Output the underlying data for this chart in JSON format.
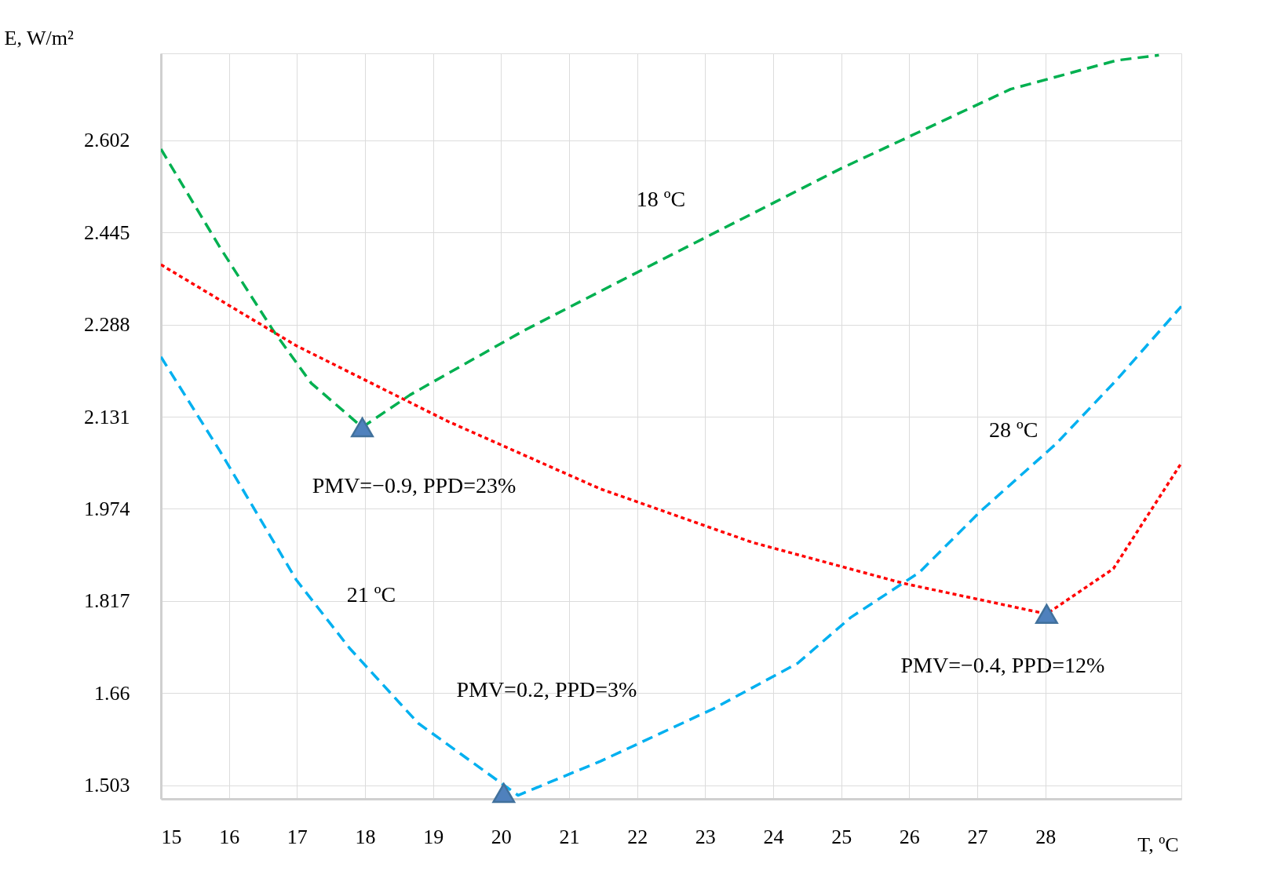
{
  "chart_data": {
    "type": "line",
    "xlabel": "T, ºC",
    "ylabel": "E, W/m²",
    "xlim": [
      15,
      30
    ],
    "xticks": [
      15,
      16,
      17,
      18,
      19,
      20,
      21,
      22,
      23,
      24,
      25,
      26,
      27,
      28
    ],
    "ylim": [
      1.48,
      2.75
    ],
    "yticks": [
      1.503,
      1.66,
      1.817,
      1.974,
      2.131,
      2.288,
      2.445,
      2.602
    ],
    "grid": true,
    "series": [
      {
        "color": "#00b050",
        "line_style": "dashed",
        "x": [
          15,
          15.87,
          16.65,
          17.21,
          17.96,
          18.66,
          20.34,
          22.49,
          25,
          27.49,
          29.05,
          29.67
        ],
        "values": [
          2.587,
          2.419,
          2.278,
          2.188,
          2.113,
          2.168,
          2.278,
          2.406,
          2.554,
          2.689,
          2.738,
          2.747
        ]
      },
      {
        "color": "#ff0000",
        "line_style": "dotted",
        "x": [
          15,
          16.99,
          19.22,
          21.46,
          23.69,
          25.92,
          28.02,
          29,
          30
        ],
        "values": [
          2.39,
          2.252,
          2.123,
          2.008,
          1.917,
          1.847,
          1.795,
          1.872,
          2.052
        ]
      },
      {
        "color": "#00b0f0",
        "line_style": "dashed",
        "x": [
          15,
          15.87,
          16.99,
          17.77,
          18.78,
          20.25,
          21.46,
          23.13,
          24.36,
          25.14,
          26.15,
          27.04,
          28.16,
          29.05,
          30
        ],
        "values": [
          2.233,
          2.072,
          1.853,
          1.737,
          1.609,
          1.486,
          1.544,
          1.634,
          1.711,
          1.789,
          1.866,
          1.969,
          2.085,
          2.194,
          2.319
        ]
      },
      {
        "type": "scatter",
        "color": "#4f81bd",
        "marker": "triangle",
        "x": [
          17.96,
          20.04,
          28.02
        ],
        "values": [
          2.113,
          1.49,
          1.795
        ]
      }
    ],
    "annotations": [
      {
        "text": "18 ºC",
        "x": 22.35,
        "y": 2.398
      },
      {
        "text": "21 ºC",
        "x": 17.4,
        "y": 1.792
      },
      {
        "text": "28 ºC",
        "x": 28.34,
        "y": 2.107
      },
      {
        "text": "PMV=−0.9, PPD=23%",
        "x": 17.96,
        "y": 2.113
      },
      "PMV=0.2, PPD=3%",
      {
        "text": "PMV=−0.4, PPD=12%",
        "x": 28.02,
        "y": 1.795
      }
    ]
  }
}
